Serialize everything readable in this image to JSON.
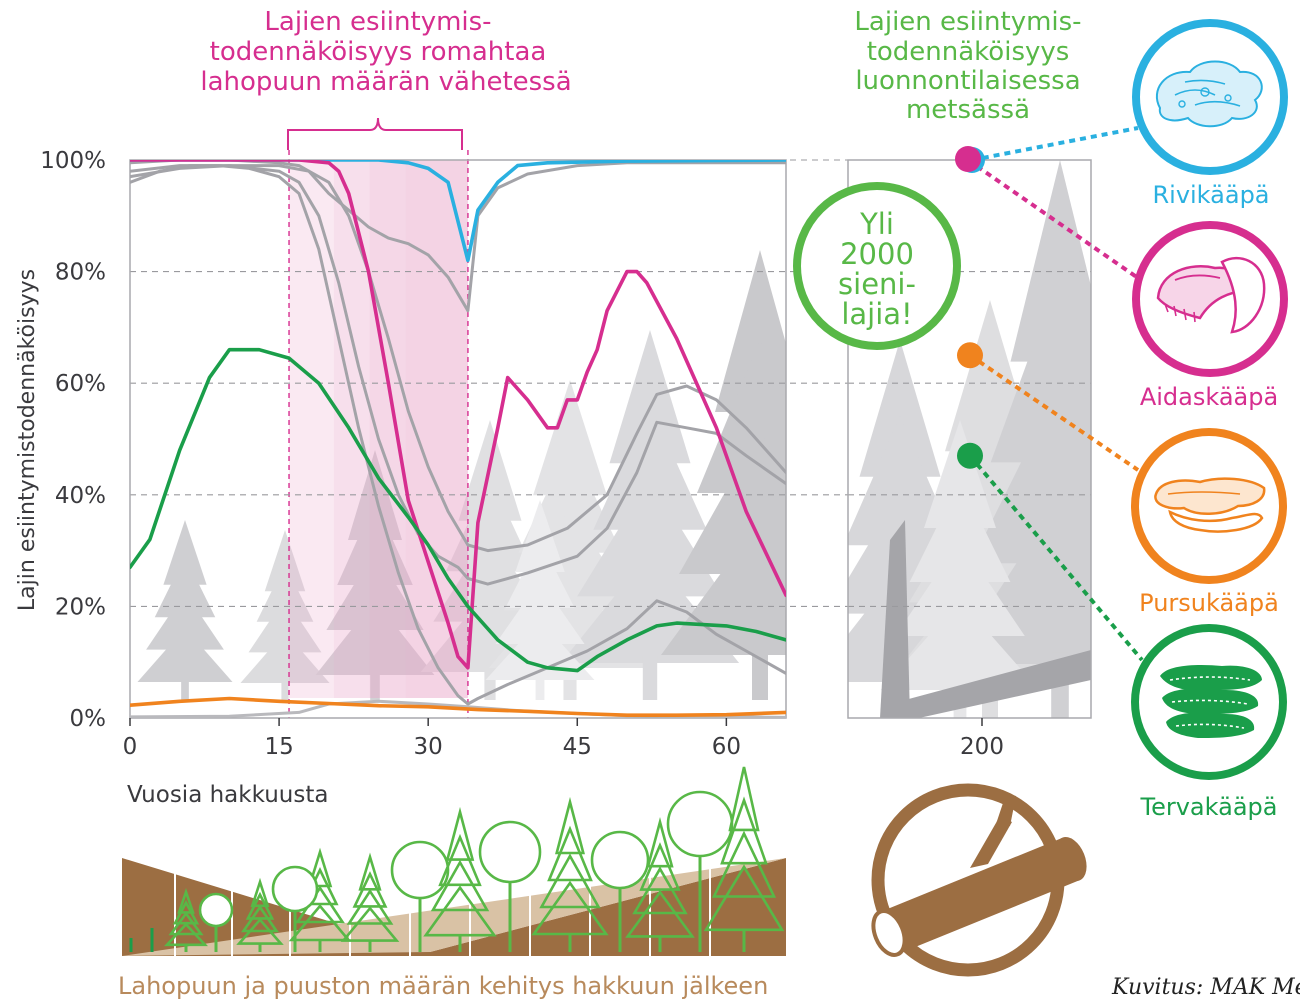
{
  "chart_data": {
    "type": "line",
    "ylabel": "Lajin esiintymistodennäköisyys",
    "xlabel": "Vuosia hakkuusta",
    "ylim": [
      0,
      100
    ],
    "xlim": [
      0,
      66
    ],
    "x_ticks": [
      "0",
      "15",
      "30",
      "45",
      "60"
    ],
    "y_ticks": [
      "0%",
      "20%",
      "40%",
      "60%",
      "80%",
      "100%"
    ],
    "grid": true,
    "highlight_range": [
      16,
      34
    ],
    "annotation_collapse": [
      "Lajien esiintymis-",
      "todennäköisyys romahtaa",
      "lahopuun määrän vähetessä"
    ],
    "annotation_natural": [
      "Lajien esiintymis-",
      "todennäköisyys",
      "luonnontilaisessa",
      "metsässä"
    ],
    "badge": [
      "Yli",
      "2000",
      "sieni-",
      "lajia!"
    ],
    "natural_forest": {
      "tick": "200",
      "points": [
        {
          "name": "Rivikääpä",
          "value": 100
        },
        {
          "name": "Aidaskääpä",
          "value": 100
        },
        {
          "name": "Pursukääpä",
          "value": 65
        },
        {
          "name": "Tervakääpä",
          "value": 47
        }
      ]
    },
    "series": [
      {
        "name": "Rivikääpä",
        "color": "#2ab0e0",
        "x": [
          0,
          20,
          25,
          28,
          30,
          32,
          34,
          35,
          37,
          39,
          42,
          50,
          66
        ],
        "y": [
          100,
          100,
          100,
          99.5,
          98.5,
          96,
          82,
          91,
          96,
          99,
          99.5,
          99.8,
          100
        ]
      },
      {
        "name": "Aidaskääpä",
        "color": "#d62e8f",
        "x": [
          0,
          10,
          17,
          20,
          21,
          22,
          24,
          26,
          28,
          30,
          32,
          33,
          34,
          35,
          37,
          38,
          40,
          42,
          43,
          44,
          45,
          46,
          47,
          48,
          50,
          51,
          52,
          55,
          59,
          62,
          66
        ],
        "y": [
          100,
          100,
          100,
          99.5,
          98,
          94,
          80,
          60,
          39,
          28,
          17,
          11,
          9,
          35,
          52,
          61,
          57,
          52,
          52,
          57,
          57,
          62,
          66,
          73,
          80,
          80,
          78,
          68,
          52,
          37,
          22
        ]
      },
      {
        "name": "Pursukääpä",
        "color": "#f0831e",
        "x": [
          0,
          5,
          10,
          15,
          20,
          25,
          30,
          35,
          40,
          45,
          50,
          55,
          60,
          66
        ],
        "y": [
          2.3,
          3.0,
          3.5,
          3.0,
          2.6,
          2.2,
          2.0,
          1.5,
          1.2,
          0.8,
          0.5,
          0.5,
          0.6,
          1.0
        ]
      },
      {
        "name": "Tervakääpä",
        "color": "#1a9e4a",
        "x": [
          0,
          2,
          5,
          8,
          10,
          13,
          16,
          19,
          22,
          25,
          28,
          30,
          32,
          34,
          37,
          40,
          42,
          45,
          47,
          50,
          53,
          55,
          60,
          63,
          66
        ],
        "y": [
          27,
          32,
          48,
          61,
          66,
          66,
          64.5,
          60,
          52,
          43,
          36,
          31,
          25,
          20,
          14,
          10,
          9,
          8.5,
          11,
          14,
          16.5,
          17,
          16.5,
          15.5,
          14
        ]
      },
      {
        "name": "",
        "color": "#a3a3a8",
        "x": [
          0,
          3,
          6,
          9,
          12,
          15,
          17,
          19,
          21,
          23,
          25,
          27,
          29,
          31,
          33,
          34,
          35,
          38,
          42,
          46,
          50,
          53,
          56,
          59,
          62,
          66
        ],
        "y": [
          96,
          98,
          99,
          99,
          98.5,
          97,
          94,
          84,
          68,
          52,
          38,
          26,
          16,
          9,
          4,
          2.5,
          3.5,
          6,
          9,
          12,
          16,
          21,
          19,
          15,
          12,
          8
        ]
      },
      {
        "name": "",
        "color": "#a3a3a8",
        "x": [
          0,
          5,
          10,
          15,
          17,
          19,
          21,
          23,
          25,
          27,
          29,
          31,
          33,
          34,
          36,
          40,
          45,
          48,
          51,
          53,
          56,
          59,
          62,
          66
        ],
        "y": [
          98,
          99,
          99,
          98,
          96,
          90,
          78,
          63,
          50,
          40,
          33,
          29,
          27,
          25,
          24,
          26,
          29,
          34,
          44,
          53,
          52,
          51,
          47,
          42
        ]
      },
      {
        "name": "",
        "color": "#a3a3a8",
        "x": [
          0,
          5,
          10,
          15,
          18,
          20,
          22,
          24,
          26,
          28,
          30,
          32,
          34,
          36,
          40,
          44,
          48,
          51,
          53,
          56,
          59,
          62,
          66
        ],
        "y": [
          97,
          98.5,
          99,
          99,
          98,
          96,
          90,
          80,
          68,
          55,
          45,
          37,
          31,
          30,
          31,
          34,
          40,
          51,
          58,
          59.5,
          57,
          52,
          44
        ]
      },
      {
        "name": "",
        "color": "#a3a3a8",
        "x": [
          0,
          5,
          10,
          15,
          17,
          18,
          19,
          20,
          22,
          24,
          26,
          28,
          30,
          32,
          34,
          35,
          37,
          40,
          45,
          50,
          55,
          60,
          66
        ],
        "y": [
          99.5,
          100,
          100,
          99.5,
          99,
          98,
          96,
          94,
          91,
          88,
          86,
          85,
          83,
          79,
          73,
          90,
          95,
          97.5,
          99,
          99.5,
          99.5,
          99.5,
          99.5
        ]
      },
      {
        "name": "",
        "color": "#b9b9bd",
        "x": [
          0,
          10,
          17,
          20,
          25,
          30,
          34,
          40,
          50,
          66
        ],
        "y": [
          0.2,
          0.3,
          1.0,
          2.5,
          3.0,
          2.5,
          2.0,
          1.2,
          0.4,
          0.1
        ]
      }
    ]
  },
  "labels": {
    "bottom_caption": "Lahopuun ja puuston määrän kehitys hakkuun jälkeen",
    "credit": "Kuvitus: MAK Me"
  }
}
